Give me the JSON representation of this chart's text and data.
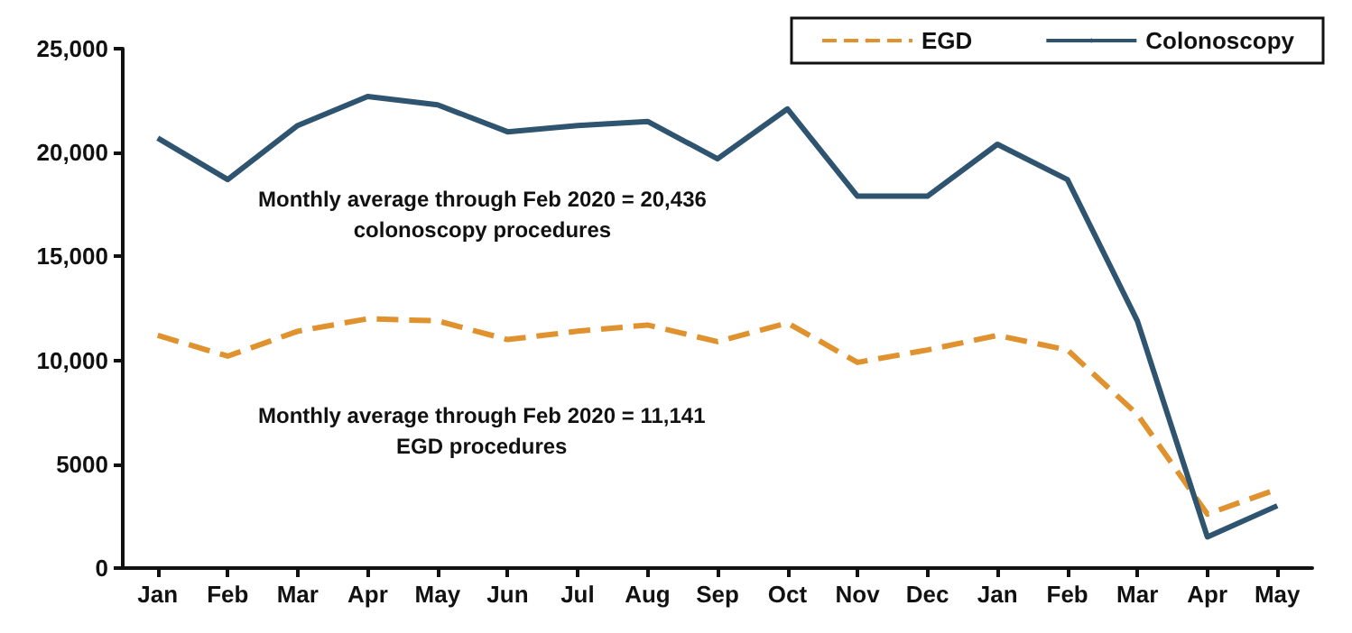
{
  "chart_data": {
    "type": "line",
    "categories": [
      "Jan",
      "Feb",
      "Mar",
      "Apr",
      "May",
      "Jun",
      "Jul",
      "Aug",
      "Sep",
      "Oct",
      "Nov",
      "Dec",
      "Jan",
      "Feb",
      "Mar",
      "Apr",
      "May"
    ],
    "series": [
      {
        "name": "EGD",
        "color": "#e0922f",
        "line_style": "dashed",
        "values": [
          11200,
          10200,
          11400,
          12000,
          11900,
          11000,
          11400,
          11700,
          10900,
          11800,
          9900,
          10500,
          11200,
          10500,
          7400,
          2600,
          3800
        ]
      },
      {
        "name": "Colonoscopy",
        "color": "#2e5470",
        "line_style": "solid",
        "values": [
          20700,
          18700,
          21300,
          22700,
          22300,
          21000,
          21300,
          21500,
          19700,
          22100,
          17900,
          17900,
          20400,
          18700,
          11900,
          1500,
          3000
        ]
      }
    ],
    "ylim": [
      0,
      25000
    ],
    "yticks": [
      0,
      5000,
      {
        "value": 10000,
        "label": "10,000"
      },
      {
        "value": 15000,
        "label": "15,000"
      },
      {
        "value": 20000,
        "label": "20,000"
      },
      {
        "value": 25000,
        "label": "25,000"
      }
    ],
    "annotations": [
      "Monthly average through Feb 2020 = 20,436\ncolonoscopy procedures",
      "Monthly average through Feb 2020 = 11,141\nEGD procedures"
    ],
    "grid": false,
    "legend": "top right",
    "marker": "none"
  }
}
